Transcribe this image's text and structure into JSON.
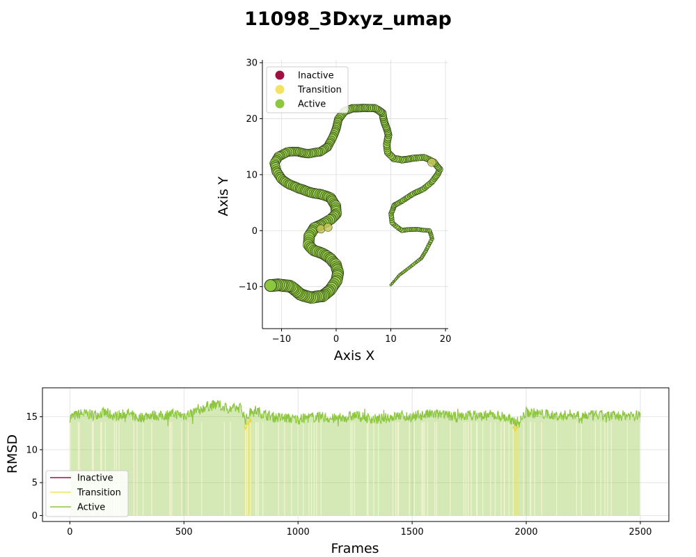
{
  "title": "11098_3Dxyz_umap",
  "colors": {
    "inactive": "#9e0f42",
    "transition": "#f2e462",
    "active": "#8dc63f",
    "edge": "#1f2b12",
    "grid": "#dddddd"
  },
  "chart_data": [
    {
      "type": "scatter",
      "xlabel": "Axis X",
      "ylabel": "Axis Y",
      "xlim": [
        -13.5,
        20.5
      ],
      "ylim": [
        -17.5,
        30.5
      ],
      "xticks": [
        -10,
        0,
        10,
        20
      ],
      "yticks": [
        -10,
        0,
        10,
        20,
        30
      ],
      "grid": true,
      "legend_position": "upper-left",
      "legend": [
        "Inactive",
        "Transition",
        "Active"
      ],
      "path": [
        [
          10,
          -9.7
        ],
        [
          11.5,
          -8
        ],
        [
          13.5,
          -6.5
        ],
        [
          15.5,
          -5
        ],
        [
          16.5,
          -3.5
        ],
        [
          17.5,
          -1.5
        ],
        [
          17,
          0
        ],
        [
          15,
          0.3
        ],
        [
          12,
          0
        ],
        [
          10.3,
          1.5
        ],
        [
          10,
          3
        ],
        [
          10.6,
          4.5
        ],
        [
          12,
          5.3
        ],
        [
          14,
          6.5
        ],
        [
          16,
          7.5
        ],
        [
          17.5,
          8.7
        ],
        [
          18.5,
          10
        ],
        [
          19,
          11
        ],
        [
          18,
          12.3
        ],
        [
          16,
          13
        ],
        [
          14,
          13
        ],
        [
          12,
          12.6
        ],
        [
          10.5,
          12.8
        ],
        [
          9.5,
          14
        ],
        [
          9.3,
          15.5
        ],
        [
          9.5,
          17
        ],
        [
          9,
          19
        ],
        [
          8.5,
          21
        ],
        [
          7,
          21.8
        ],
        [
          5,
          22
        ],
        [
          3,
          21.8
        ],
        [
          1.5,
          21.3
        ],
        [
          0.5,
          20
        ],
        [
          0,
          18.3
        ],
        [
          -0.7,
          16.5
        ],
        [
          -1.5,
          15
        ],
        [
          -3,
          14
        ],
        [
          -5,
          13.8
        ],
        [
          -7,
          14.1
        ],
        [
          -9,
          14
        ],
        [
          -10.5,
          13.3
        ],
        [
          -11.3,
          12
        ],
        [
          -11,
          10.5
        ],
        [
          -10,
          9.3
        ],
        [
          -8.5,
          8.3
        ],
        [
          -7,
          7.5
        ],
        [
          -5,
          7
        ],
        [
          -3,
          6.5
        ],
        [
          -1,
          5.8
        ],
        [
          0,
          4.5
        ],
        [
          0,
          3
        ],
        [
          -1,
          2
        ],
        [
          -2.5,
          1.2
        ],
        [
          -4,
          0.5
        ],
        [
          -5,
          -1
        ],
        [
          -5,
          -2.5
        ],
        [
          -4,
          -3.5
        ],
        [
          -2.5,
          -4.2
        ],
        [
          -1,
          -5
        ],
        [
          0,
          -6
        ],
        [
          0.3,
          -7.5
        ],
        [
          0,
          -9
        ],
        [
          -1,
          -10.5
        ],
        [
          -2.5,
          -11.7
        ],
        [
          -4.5,
          -12
        ],
        [
          -6.5,
          -11.3
        ],
        [
          -8.5,
          -10
        ],
        [
          -10.5,
          -9.6
        ],
        [
          -12,
          -9.8
        ]
      ],
      "transition_points": [
        [
          -2.8,
          0.3
        ],
        [
          -1.5,
          0.6
        ],
        [
          17.5,
          12.2
        ]
      ]
    },
    {
      "type": "line",
      "xlabel": "Frames",
      "ylabel": "RMSD",
      "xlim": [
        -120,
        2625
      ],
      "ylim": [
        -0.9,
        19.4
      ],
      "xticks": [
        0,
        500,
        1000,
        1500,
        2000,
        2500
      ],
      "yticks": [
        0,
        5,
        10,
        15
      ],
      "grid": true,
      "legend_position": "lower-left",
      "legend": [
        "Inactive",
        "Transition",
        "Active"
      ],
      "series": [
        {
          "x": [
            0,
            50,
            100,
            150,
            200,
            250,
            300,
            350,
            400,
            450,
            500,
            550,
            600,
            650,
            700,
            750,
            770,
            800,
            850,
            900,
            950,
            1000,
            1050,
            1100,
            1150,
            1200,
            1250,
            1300,
            1350,
            1400,
            1450,
            1500,
            1550,
            1600,
            1650,
            1700,
            1750,
            1800,
            1850,
            1900,
            1950,
            1970,
            2000,
            2050,
            2100,
            2150,
            2200,
            2250,
            2300,
            2350,
            2400,
            2450,
            2500
          ],
          "y": [
            14.9,
            15.5,
            15.3,
            15.6,
            15.1,
            15.6,
            14.8,
            15.3,
            15.1,
            15.5,
            15.2,
            15.8,
            16.6,
            16.8,
            16.2,
            16.4,
            14.5,
            16.2,
            15.4,
            14.9,
            14.8,
            14.6,
            14.9,
            15.0,
            14.7,
            14.8,
            15.2,
            14.8,
            14.6,
            14.9,
            15.2,
            15.0,
            15.3,
            15.4,
            15.2,
            14.9,
            15.3,
            15.1,
            15.3,
            15.0,
            14.3,
            14.2,
            15.7,
            15.5,
            15.3,
            15.1,
            15.4,
            15.2,
            15.2,
            15.2,
            15.1,
            15.3,
            15.2
          ]
        }
      ],
      "transition_bands": [
        [
          763,
          795
        ],
        [
          1942,
          1968
        ]
      ]
    }
  ]
}
